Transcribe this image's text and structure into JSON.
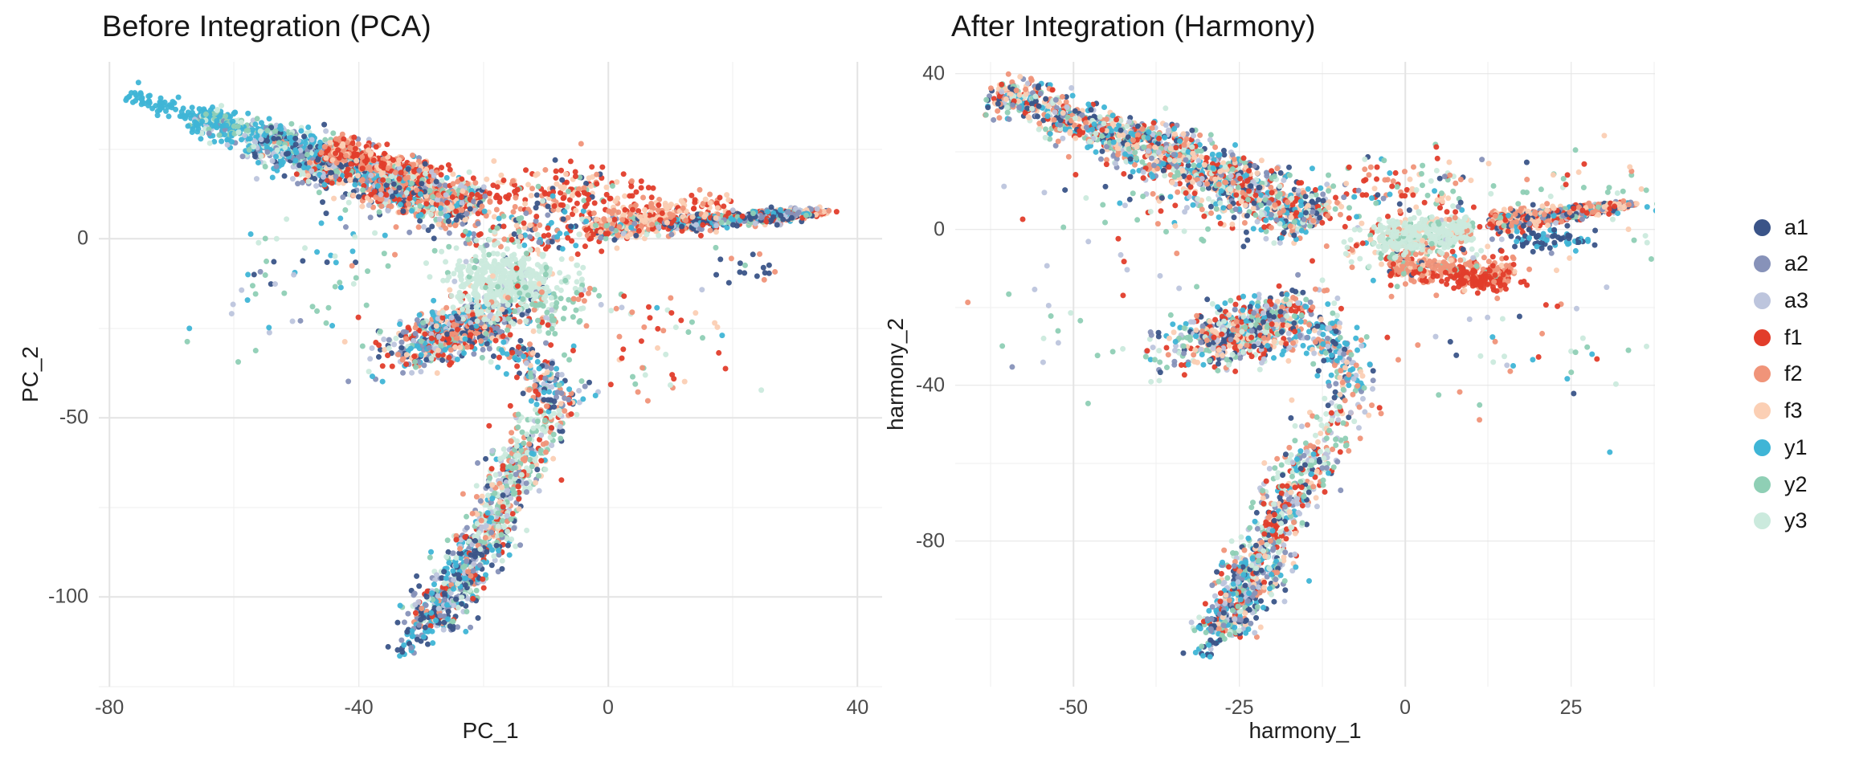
{
  "groups": [
    {
      "id": "a1",
      "color": "#3A5488"
    },
    {
      "id": "a2",
      "color": "#8792B9"
    },
    {
      "id": "a3",
      "color": "#BDC5DD"
    },
    {
      "id": "f1",
      "color": "#E23D2B"
    },
    {
      "id": "f2",
      "color": "#F09479"
    },
    {
      "id": "f3",
      "color": "#FBCFB4"
    },
    {
      "id": "y1",
      "color": "#3FB5D6"
    },
    {
      "id": "y2",
      "color": "#8FCFB5"
    },
    {
      "id": "y3",
      "color": "#CBEADD"
    }
  ],
  "legend": {
    "items": [
      "a1",
      "a2",
      "a3",
      "f1",
      "f2",
      "f3",
      "y1",
      "y2",
      "y3"
    ],
    "row_height": 45.72,
    "position": "right"
  },
  "chart_data": [
    {
      "type": "scatter",
      "panel_id": "panel-pca",
      "title": "Before Integration (PCA)",
      "xlabel": "PC_1",
      "ylabel": "PC_2",
      "xlim": [
        -81.7,
        43.94
      ],
      "ylim": [
        -125.1,
        49.33
      ],
      "x_major_ticks": [
        -80,
        -40,
        0,
        40
      ],
      "x_minor_ticks": [
        -60,
        -20,
        20
      ],
      "y_major_ticks": [
        0,
        -50,
        -100
      ],
      "y_minor_ticks": [
        25,
        -25,
        -75,
        -125
      ],
      "grid": true,
      "legend_position": "shared-right",
      "seed": 20240613,
      "series_groups": [
        "a1",
        "a2",
        "a3",
        "f1",
        "f2",
        "f3",
        "y1",
        "y2",
        "y3"
      ],
      "clusters": [
        {
          "shape": "band",
          "from": [
            -77,
            40.5
          ],
          "to": [
            -62,
            32
          ],
          "w": 1.3,
          "n": 85,
          "colors": {
            "y1": 1
          }
        },
        {
          "shape": "band",
          "from": [
            -66,
            34
          ],
          "to": [
            -52,
            26
          ],
          "w": 2.2,
          "n": 270,
          "colors": {
            "y1": 6,
            "y2": 2,
            "y3": 1.5,
            "a3": 1,
            "a2": 0.5
          }
        },
        {
          "shape": "band",
          "from": [
            -56,
            28
          ],
          "to": [
            -42,
            20
          ],
          "w": 2.8,
          "n": 460,
          "colors": {
            "y1": 3,
            "y2": 1.5,
            "y3": 1,
            "a1": 2,
            "a2": 2,
            "a3": 1.5,
            "f2": 0.3
          }
        },
        {
          "shape": "band",
          "from": [
            -47,
            23
          ],
          "to": [
            -32,
            14
          ],
          "w": 3.0,
          "n": 520,
          "colors": {
            "a1": 2.5,
            "a2": 2,
            "a3": 1.5,
            "y1": 2,
            "y2": 1,
            "y3": 0.8,
            "f1": 2,
            "f2": 2,
            "f3": 1.5
          }
        },
        {
          "shape": "band",
          "from": [
            -45,
            26
          ],
          "to": [
            -28,
            17
          ],
          "w": 1.8,
          "n": 260,
          "colors": {
            "f1": 3,
            "f2": 2.5,
            "f3": 2
          }
        },
        {
          "shape": "band",
          "from": [
            -36,
            16
          ],
          "to": [
            -21,
            8
          ],
          "w": 3.2,
          "n": 620,
          "colors": {
            "f1": 2.5,
            "f2": 2.5,
            "f3": 2,
            "a1": 1.5,
            "a2": 1.2,
            "a3": 1,
            "y1": 1.5,
            "y2": 1,
            "y3": 0.8
          }
        },
        {
          "shape": "blob",
          "c": [
            -8,
            13
          ],
          "sx": 7,
          "sy": 3.5,
          "n": 160,
          "colors": {
            "f1": 3,
            "f2": 1.5,
            "f3": 1.2,
            "y2": 0.3,
            "a1": 0.2
          }
        },
        {
          "shape": "blob",
          "c": [
            -12,
            3
          ],
          "sx": 6,
          "sy": 4,
          "n": 170,
          "colors": {
            "f1": 2,
            "f2": 1.5,
            "f3": 1,
            "a1": 1,
            "a2": 0.8,
            "y1": 1,
            "y2": 0.8,
            "y3": 0.5
          }
        },
        {
          "shape": "band",
          "from": [
            -4,
            2.5
          ],
          "to": [
            35,
            7.5
          ],
          "w": 2.2,
          "taper": 1,
          "n": 760,
          "colors": {
            "f3": 5,
            "f2": 2.5,
            "f1": 2,
            "a1": 1,
            "a2": 0.8,
            "y1": 0.8,
            "y2": 0.8,
            "a3": 0.5,
            "y3": 0.3
          }
        },
        {
          "shape": "band",
          "from": [
            8,
            4
          ],
          "to": [
            32,
            6.8
          ],
          "w": 1.0,
          "n": 220,
          "colors": {
            "a1": 2,
            "a2": 1,
            "y1": 1.5,
            "y2": 1,
            "f1": 1.5,
            "a3": 0.8
          }
        },
        {
          "shape": "band",
          "from": [
            0,
            6.5
          ],
          "to": [
            20,
            10
          ],
          "w": 1.8,
          "n": 120,
          "colors": {
            "f3": 2,
            "f2": 1.5,
            "f1": 1.5
          }
        },
        {
          "shape": "blob",
          "c": [
            23,
            -7
          ],
          "sx": 3,
          "sy": 3,
          "n": 18,
          "colors": {
            "a1": 1.5,
            "f2": 0.8,
            "y2": 0.5
          }
        },
        {
          "shape": "blob",
          "c": [
            -52,
            -14
          ],
          "sx": 9,
          "sy": 9,
          "n": 45,
          "colors": {
            "y2": 1.5,
            "y1": 1,
            "a2": 0.6,
            "a3": 0.5,
            "y3": 0.5,
            "a1": 0.3
          }
        },
        {
          "shape": "blob",
          "c": [
            8,
            -28
          ],
          "sx": 8,
          "sy": 9,
          "n": 55,
          "colors": {
            "f1": 1.5,
            "f2": 1,
            "f3": 0.8,
            "y2": 0.8,
            "y3": 0.6,
            "a3": 0.4,
            "y1": 0.4
          }
        },
        {
          "shape": "blob",
          "c": [
            -38,
            2
          ],
          "sx": 9,
          "sy": 6,
          "n": 40,
          "colors": {
            "y2": 1,
            "y1": 0.8,
            "a2": 0.5,
            "y3": 0.5,
            "f2": 0.4,
            "a1": 0.3
          }
        },
        {
          "shape": "blob",
          "c": [
            -24,
            -26
          ],
          "sx": 6.5,
          "sy": 3.2,
          "rot": 35,
          "n": 660,
          "colors": {
            "a1": 2,
            "a2": 1.5,
            "a3": 1.2,
            "f1": 2,
            "f2": 1.5,
            "f3": 1,
            "y1": 1.8,
            "y2": 1,
            "y3": 0.8
          }
        },
        {
          "shape": "band",
          "from": [
            -15,
            -30
          ],
          "to": [
            -7.5,
            -47
          ],
          "w": 2,
          "n": 170,
          "colors": {
            "y1": 2,
            "a1": 1.2,
            "a2": 1.2,
            "a3": 1,
            "f2": 1,
            "f1": 0.8,
            "y2": 0.8,
            "f3": 0.6
          }
        },
        {
          "shape": "band",
          "from": [
            -9,
            -47
          ],
          "to": [
            -13,
            -60
          ],
          "w": 2.5,
          "n": 90,
          "colors": {
            "y2": 1.5,
            "y3": 1.2,
            "f2": 1,
            "a3": 0.8,
            "f1": 0.6,
            "a1": 0.5
          }
        },
        {
          "shape": "band",
          "from": [
            -13,
            -58
          ],
          "to": [
            -20,
            -85
          ],
          "w": 2.2,
          "n": 390,
          "colors": {
            "y3": 2.5,
            "y2": 2,
            "f1": 1.2,
            "f2": 1,
            "a3": 1.2,
            "a2": 0.8,
            "a1": 0.6,
            "y1": 0.6,
            "f3": 0.6
          }
        },
        {
          "shape": "band",
          "from": [
            -20,
            -85
          ],
          "to": [
            -29,
            -108
          ],
          "w": 2.5,
          "n": 430,
          "colors": {
            "a1": 2.5,
            "a2": 1.8,
            "a3": 1.5,
            "y1": 2,
            "y2": 1,
            "f1": 0.8,
            "y3": 0.8,
            "f2": 0.4
          }
        },
        {
          "shape": "band",
          "from": [
            -29,
            -108
          ],
          "to": [
            -34,
            -117
          ],
          "w": 1.4,
          "n": 40,
          "colors": {
            "y1": 2,
            "a1": 1,
            "a2": 0.8
          }
        },
        {
          "shape": "blob",
          "c": [
            -16.5,
            -12
          ],
          "sx": 4.5,
          "sy": 4,
          "rot": -10,
          "n": 440,
          "colors": {
            "y3": 14,
            "y2": 0.6,
            "f3": 0.4,
            "a3": 0.2
          }
        },
        {
          "shape": "blob",
          "c": [
            -10,
            -18
          ],
          "sx": 5,
          "sy": 4,
          "n": 85,
          "colors": {
            "y2": 2,
            "y3": 0.7,
            "f2": 0.5,
            "f1": 0.4,
            "a3": 0.3
          }
        }
      ]
    },
    {
      "type": "scatter",
      "panel_id": "panel-harmony",
      "title": "After Integration (Harmony)",
      "xlabel": "harmony_1",
      "ylabel": "harmony_2",
      "xlim": [
        -67.8,
        37.65
      ],
      "ylim": [
        -117.32,
        43.09
      ],
      "x_major_ticks": [
        -50,
        -25,
        0,
        25
      ],
      "x_minor_ticks": [
        -62.5,
        -37.5,
        -12.5,
        12.5,
        37.5
      ],
      "y_major_ticks": [
        40,
        0,
        -40,
        -80
      ],
      "y_minor_ticks": [
        20,
        -20,
        -60,
        -100
      ],
      "grid": true,
      "legend_position": "shared-right",
      "seed": 987123,
      "series_groups": [
        "a1",
        "a2",
        "a3",
        "f1",
        "f2",
        "f3",
        "y1",
        "y2",
        "y3"
      ],
      "clusters": [
        {
          "shape": "band",
          "from": [
            -62,
            36
          ],
          "to": [
            -40,
            22
          ],
          "w": 2.4,
          "n": 560,
          "colors": {
            "a1": 1.2,
            "a2": 1,
            "a3": 1,
            "f1": 1.4,
            "f2": 1.3,
            "f3": 1.3,
            "y1": 1.7,
            "y2": 1.2,
            "y3": 1
          }
        },
        {
          "shape": "band",
          "from": [
            -42,
            24
          ],
          "to": [
            -13,
            2
          ],
          "w": 3.2,
          "n": 980,
          "colors": {
            "a1": 1.2,
            "a2": 1,
            "a3": 1,
            "f1": 1.6,
            "f2": 1.4,
            "f3": 1.3,
            "y1": 1.7,
            "y2": 1.2,
            "y3": 1
          }
        },
        {
          "shape": "blob",
          "c": [
            -35,
            5
          ],
          "sx": 10,
          "sy": 6,
          "n": 80,
          "colors": {
            "y2": 1,
            "f3": 1,
            "f2": 0.8,
            "a3": 0.8,
            "y3": 0.8,
            "a1": 0.5,
            "f1": 0.7,
            "y1": 0.8
          }
        },
        {
          "shape": "blob",
          "c": [
            -2,
            10
          ],
          "sx": 8,
          "sy": 4.5,
          "n": 130,
          "colors": {
            "f1": 1.5,
            "f2": 1,
            "f3": 0.8,
            "y2": 0.8,
            "y1": 0.6,
            "a2": 0.4,
            "y3": 0.4,
            "a1": 0.4
          }
        },
        {
          "shape": "blob",
          "c": [
            2,
            -5
          ],
          "sx": 7,
          "sy": 3,
          "n": 120,
          "colors": {
            "y2": 1.5,
            "f2": 1,
            "f1": 0.8,
            "y3": 0.8,
            "f3": 0.6,
            "a1": 0.4,
            "y1": 0.4
          }
        },
        {
          "shape": "band",
          "from": [
            -2,
            -9
          ],
          "to": [
            16,
            -12
          ],
          "w": 2.0,
          "n": 310,
          "colors": {
            "f2": 4,
            "f1": 1.5,
            "f3": 1,
            "a1": 0.3,
            "y2": 0.3
          }
        },
        {
          "shape": "blob",
          "c": [
            11,
            -13
          ],
          "sx": 2.5,
          "sy": 1.5,
          "n": 90,
          "colors": {
            "f1": 5,
            "f2": 1
          }
        },
        {
          "shape": "band",
          "from": [
            13,
            1.5
          ],
          "to": [
            34,
            6.5
          ],
          "w": 1.8,
          "taper": 1,
          "n": 660,
          "colors": {
            "f3": 3,
            "f2": 2.5,
            "f1": 2.5,
            "a1": 1.2,
            "y1": 1,
            "a2": 0.8,
            "y2": 0.8,
            "a3": 0.5
          }
        },
        {
          "shape": "blob",
          "c": [
            22,
            -2.5
          ],
          "sx": 3.5,
          "sy": 1.5,
          "n": 70,
          "colors": {
            "a1": 3,
            "y1": 1.5,
            "a2": 0.6
          }
        },
        {
          "shape": "blob",
          "c": [
            38,
            3
          ],
          "sx": 5,
          "sy": 5,
          "n": 35,
          "colors": {
            "y2": 1.5,
            "y3": 1,
            "y1": 0.6,
            "f3": 0.4
          }
        },
        {
          "shape": "blob",
          "c": [
            -24,
            -26
          ],
          "sx": 6.5,
          "sy": 3.4,
          "rot": 30,
          "n": 660,
          "colors": {
            "a1": 1.5,
            "a2": 1.2,
            "a3": 1.2,
            "f1": 1.8,
            "f2": 1.4,
            "f3": 1.2,
            "y1": 1.8,
            "y2": 1.3,
            "y3": 1
          }
        },
        {
          "shape": "band",
          "from": [
            -13,
            -24
          ],
          "to": [
            -7,
            -42
          ],
          "w": 2,
          "n": 160,
          "colors": {
            "y1": 2,
            "a2": 1.2,
            "a3": 1.2,
            "a1": 1,
            "f2": 0.8,
            "y2": 0.6,
            "f3": 0.5
          }
        },
        {
          "shape": "band",
          "from": [
            -8,
            -43
          ],
          "to": [
            -14,
            -58
          ],
          "w": 2.5,
          "n": 90,
          "colors": {
            "f2": 1.2,
            "y2": 1,
            "a3": 0.8,
            "y3": 0.8,
            "a1": 0.6,
            "f3": 0.6,
            "f1": 0.5
          }
        },
        {
          "shape": "band",
          "from": [
            -14,
            -58
          ],
          "to": [
            -22,
            -85
          ],
          "w": 2.2,
          "n": 360,
          "colors": {
            "y3": 1.8,
            "y2": 1.5,
            "a3": 1.2,
            "f1": 1.2,
            "f2": 1,
            "a1": 1,
            "a2": 0.8,
            "y1": 0.8,
            "f3": 0.6
          }
        },
        {
          "shape": "band",
          "from": [
            -22,
            -85
          ],
          "to": [
            -28,
            -104
          ],
          "w": 2.3,
          "n": 390,
          "colors": {
            "a1": 1.8,
            "a2": 1.5,
            "a3": 1.3,
            "y1": 1.5,
            "y2": 1.3,
            "f1": 1,
            "f2": 0.7,
            "f3": 0.7,
            "y3": 0.8
          }
        },
        {
          "shape": "band",
          "from": [
            -28,
            -104
          ],
          "to": [
            -31,
            -110
          ],
          "w": 1.2,
          "n": 25,
          "colors": {
            "y1": 1.5,
            "a1": 0.8,
            "y2": 0.8,
            "a3": 0.5
          }
        },
        {
          "shape": "blob",
          "c": [
            -45,
            -25
          ],
          "sx": 10,
          "sy": 12,
          "n": 40,
          "colors": {
            "y2": 1.2,
            "y3": 0.8,
            "a2": 0.5,
            "f2": 0.5,
            "f1": 0.4,
            "a3": 0.4
          }
        },
        {
          "shape": "blob",
          "c": [
            18,
            -30
          ],
          "sx": 12,
          "sy": 10,
          "n": 50,
          "colors": {
            "f1": 1,
            "f2": 0.8,
            "y2": 0.8,
            "a3": 0.5,
            "y3": 0.5,
            "y1": 0.4,
            "a1": 0.3
          }
        },
        {
          "shape": "blob",
          "c": [
            30,
            12
          ],
          "sx": 8,
          "sy": 4,
          "n": 25,
          "colors": {
            "y2": 1,
            "f3": 0.8,
            "f2": 0.6,
            "y3": 0.5,
            "f1": 0.4
          }
        },
        {
          "shape": "band",
          "from": [
            -4,
            -2.5
          ],
          "to": [
            10,
            0
          ],
          "w": 2.2,
          "n": 390,
          "colors": {
            "y3": 12,
            "y2": 0.8,
            "f2": 0.5,
            "a3": 0.3,
            "f3": 0.3
          }
        }
      ]
    }
  ]
}
